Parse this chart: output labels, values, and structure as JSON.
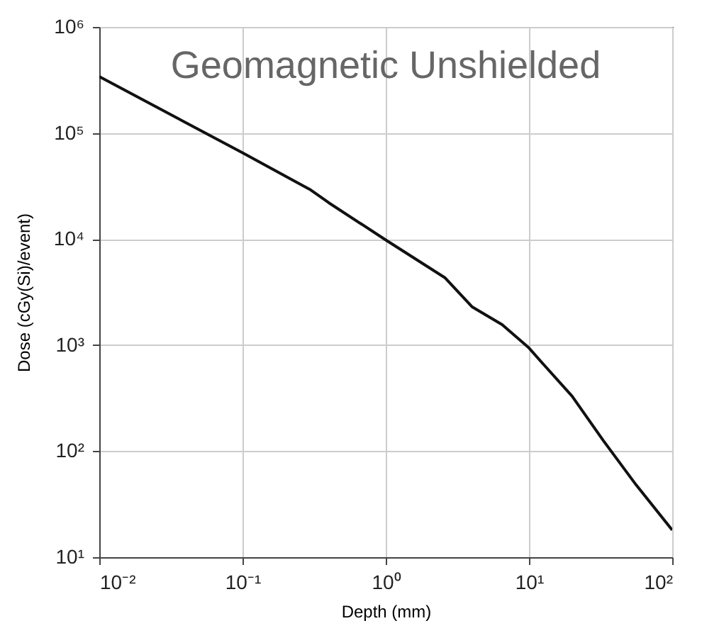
{
  "chart_data": {
    "type": "line",
    "title": "Geomagnetic Unshielded",
    "xlabel": "Depth (mm)",
    "ylabel": "Dose (cGy(Si)/event)",
    "log": "xy",
    "grid": true,
    "line_style": "solid",
    "marker": "none",
    "x": [
      0.01,
      0.1,
      0.3,
      0.4,
      1,
      2.6,
      4,
      6.5,
      10,
      12.6,
      20,
      33,
      56,
      100
    ],
    "series": [
      {
        "color": "#111111",
        "values": [
          340000,
          65000,
          29000,
          22000,
          9800,
          4300,
          2300,
          1560,
          940,
          660,
          330,
          126,
          48,
          18
        ]
      }
    ],
    "xlim": [
      0.01,
      100
    ],
    "ylim": [
      10,
      1000000
    ],
    "xticks": [
      {
        "value": 0.01,
        "label": "10⁻²"
      },
      {
        "value": 0.1,
        "label": "10⁻¹"
      },
      {
        "value": 1,
        "label": "10⁰"
      },
      {
        "value": 10,
        "label": "10¹"
      },
      {
        "value": 100,
        "label": "10²"
      }
    ],
    "yticks": [
      {
        "value": 10,
        "label": "10¹"
      },
      {
        "value": 100,
        "label": "10²"
      },
      {
        "value": 1000,
        "label": "10³"
      },
      {
        "value": 10000,
        "label": "10⁴"
      },
      {
        "value": 100000,
        "label": "10⁵"
      },
      {
        "value": 1000000,
        "label": "10⁶"
      }
    ]
  }
}
